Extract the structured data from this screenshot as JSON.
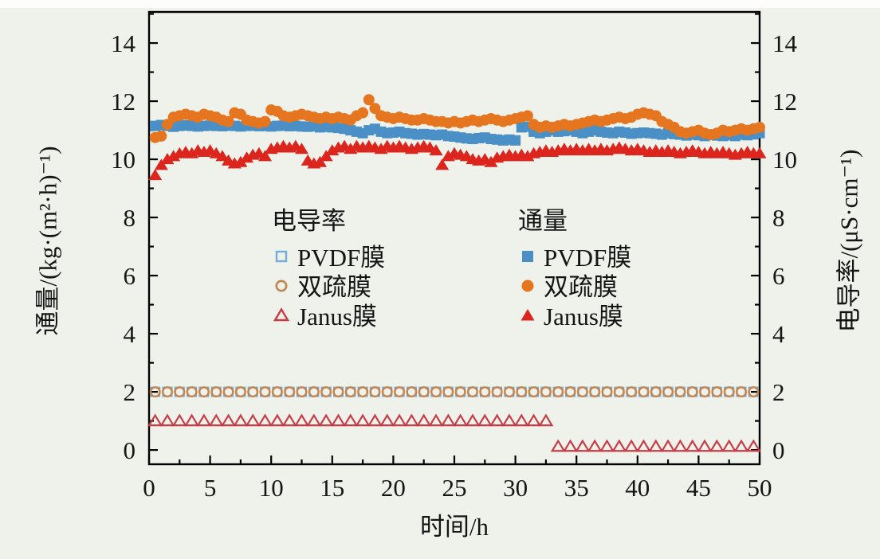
{
  "figure": {
    "background": "#EEF2EB",
    "frame_color": "#000000",
    "text_color": "#151515"
  },
  "legend": {
    "groups": [
      {
        "title": "电导率",
        "items": [
          {
            "label": "PVDF膜",
            "marker": "square-open",
            "color": "#74ADD8"
          },
          {
            "label": "双疏膜",
            "marker": "circle-open",
            "color": "#C5834E"
          },
          {
            "label": "Janus膜",
            "marker": "triangle-open",
            "color": "#C93B45"
          }
        ]
      },
      {
        "title": "通量",
        "items": [
          {
            "label": "PVDF膜",
            "marker": "square",
            "color": "#4A90C6"
          },
          {
            "label": "双疏膜",
            "marker": "circle",
            "color": "#E5761F"
          },
          {
            "label": "Janus膜",
            "marker": "triangle",
            "color": "#DC251C"
          }
        ]
      }
    ]
  },
  "chart_data": {
    "type": "scatter",
    "title": "",
    "xlabel": "时间/h",
    "ylabel_left": "通量/(kg·(m²·h)⁻¹)",
    "ylabel_right": "电导率/(μS·cm⁻¹)",
    "xlim": [
      0,
      50
    ],
    "ylim": [
      -0.49,
      15.07
    ],
    "x_major_ticks": [
      0,
      5,
      10,
      15,
      20,
      25,
      30,
      35,
      40,
      45,
      50
    ],
    "x_minor_ticks": [
      2.5,
      7.5,
      12.5,
      17.5,
      22.5,
      27.5,
      32.5,
      37.5,
      42.5,
      47.5
    ],
    "y_major_ticks": [
      0,
      2,
      4,
      6,
      8,
      10,
      12,
      14
    ],
    "y_minor_ticks": [
      1,
      3,
      5,
      7,
      9,
      11,
      13,
      15
    ],
    "grid": false,
    "legend_position": "inside-center",
    "series": [
      {
        "name": "电导率 PVDF膜",
        "axis": "right",
        "marker": "square-open",
        "color": "#74ADD8",
        "x_start": 0.5,
        "x_step": 1.0,
        "values": [
          2,
          2,
          2,
          2,
          2,
          2,
          2,
          2,
          2,
          2,
          2,
          2,
          2,
          2,
          2,
          2,
          2,
          2,
          2,
          2,
          2,
          2,
          2,
          2,
          2,
          2,
          2,
          2,
          2,
          2,
          2,
          2,
          2,
          2,
          2,
          2,
          2,
          2,
          2,
          2,
          2,
          2,
          2,
          2,
          2,
          2,
          2,
          2,
          2,
          2
        ]
      },
      {
        "name": "电导率 双疏膜",
        "axis": "right",
        "marker": "circle-open",
        "color": "#C5834E",
        "x_start": 0.5,
        "x_step": 1.0,
        "values": [
          2,
          2,
          2,
          2,
          2,
          2,
          2,
          2,
          2,
          2,
          2,
          2,
          2,
          2,
          2,
          2,
          2,
          2,
          2,
          2,
          2,
          2,
          2,
          2,
          2,
          2,
          2,
          2,
          2,
          2,
          2,
          2,
          2,
          2,
          2,
          2,
          2,
          2,
          2,
          2,
          2,
          2,
          2,
          2,
          2,
          2,
          2,
          2,
          2,
          2
        ]
      },
      {
        "name": "电导率 Janus膜",
        "axis": "right",
        "marker": "triangle-open",
        "color": "#C93B45",
        "x_start": 0.5,
        "x_step": 1.0,
        "values": [
          1,
          1,
          1,
          1,
          1,
          1,
          1,
          1,
          1,
          1,
          1,
          1,
          1,
          1,
          1,
          1,
          1,
          1,
          1,
          1,
          1,
          1,
          1,
          1,
          1,
          1,
          1,
          1,
          1,
          1,
          1,
          1,
          1,
          0.12,
          0.12,
          0.12,
          0.12,
          0.12,
          0.12,
          0.12,
          0.12,
          0.12,
          0.12,
          0.12,
          0.12,
          0.12,
          0.12,
          0.12,
          0.12,
          0.12
        ]
      },
      {
        "name": "通量 PVDF膜",
        "axis": "left",
        "marker": "square",
        "color": "#4A90C6",
        "x_start": 0.5,
        "x_step": 0.5,
        "values": [
          11.15,
          11.18,
          11.15,
          11.12,
          11.15,
          11.17,
          11.15,
          11.13,
          11.15,
          11.16,
          11.15,
          11.14,
          11.16,
          11.15,
          11.13,
          11.15,
          11.16,
          11.14,
          11.15,
          11.13,
          11.15,
          11.16,
          11.14,
          11.15,
          11.13,
          11.12,
          11.14,
          11.1,
          11.12,
          11.1,
          11.08,
          11.05,
          11.0,
          10.95,
          10.9,
          11.0,
          11.05,
          10.95,
          10.9,
          10.92,
          10.95,
          10.9,
          10.88,
          10.85,
          10.87,
          10.85,
          10.83,
          10.85,
          10.8,
          10.78,
          10.75,
          10.72,
          10.7,
          10.73,
          10.75,
          10.7,
          10.68,
          10.65,
          10.68,
          10.65,
          11.1,
          11.12,
          10.95,
          10.9,
          10.95,
          11.0,
          10.95,
          10.97,
          11.0,
          10.95,
          10.9,
          10.95,
          11.0,
          10.95,
          10.92,
          10.9,
          10.95,
          10.92,
          10.88,
          10.9,
          10.92,
          10.9,
          10.88,
          10.85,
          10.9,
          10.87,
          10.85,
          10.82,
          10.85,
          10.83,
          10.8,
          10.85,
          10.82,
          10.8,
          10.83,
          10.8,
          10.85,
          10.83,
          10.86,
          10.9
        ]
      },
      {
        "name": "通量 双疏膜",
        "axis": "left",
        "marker": "circle",
        "color": "#E5761F",
        "x_start": 0.5,
        "x_step": 0.5,
        "values": [
          10.75,
          10.8,
          11.2,
          11.45,
          11.5,
          11.55,
          11.5,
          11.45,
          11.55,
          11.5,
          11.45,
          11.35,
          11.3,
          11.6,
          11.55,
          11.35,
          11.3,
          11.25,
          11.3,
          11.7,
          11.65,
          11.5,
          11.45,
          11.5,
          11.55,
          11.5,
          11.45,
          11.4,
          11.45,
          11.4,
          11.45,
          11.4,
          11.35,
          11.5,
          11.6,
          12.05,
          11.75,
          11.5,
          11.45,
          11.4,
          11.45,
          11.4,
          11.35,
          11.35,
          11.4,
          11.35,
          11.3,
          11.3,
          11.25,
          11.3,
          11.25,
          11.3,
          11.35,
          11.3,
          11.35,
          11.4,
          11.35,
          11.3,
          11.35,
          11.4,
          11.45,
          11.5,
          11.2,
          11.1,
          11.15,
          11.1,
          11.15,
          11.2,
          11.15,
          11.2,
          11.25,
          11.3,
          11.35,
          11.3,
          11.35,
          11.4,
          11.45,
          11.4,
          11.45,
          11.55,
          11.6,
          11.55,
          11.5,
          11.3,
          11.2,
          11.1,
          10.95,
          10.9,
          10.95,
          11.0,
          10.9,
          10.85,
          10.9,
          11.0,
          10.95,
          11.0,
          11.05,
          11.0,
          11.05,
          11.1
        ]
      },
      {
        "name": "通量 Janus膜",
        "axis": "left",
        "marker": "triangle",
        "color": "#DC251C",
        "x_start": 0.5,
        "x_step": 0.5,
        "values": [
          9.45,
          9.8,
          10.0,
          10.1,
          10.2,
          10.25,
          10.2,
          10.3,
          10.25,
          10.3,
          10.2,
          10.1,
          9.95,
          9.85,
          9.9,
          10.05,
          10.15,
          10.2,
          10.1,
          10.35,
          10.4,
          10.45,
          10.4,
          10.45,
          10.35,
          9.95,
          9.85,
          9.9,
          10.1,
          10.3,
          10.4,
          10.45,
          10.35,
          10.45,
          10.4,
          10.45,
          10.4,
          10.35,
          10.45,
          10.4,
          10.45,
          10.4,
          10.35,
          10.4,
          10.45,
          10.4,
          10.3,
          9.8,
          10.1,
          10.2,
          10.15,
          10.1,
          10.0,
          9.95,
          10.0,
          9.9,
          10.05,
          10.1,
          10.15,
          10.1,
          10.15,
          10.1,
          10.2,
          10.25,
          10.3,
          10.25,
          10.3,
          10.35,
          10.3,
          10.35,
          10.3,
          10.35,
          10.3,
          10.35,
          10.3,
          10.35,
          10.4,
          10.35,
          10.3,
          10.35,
          10.3,
          10.25,
          10.3,
          10.25,
          10.3,
          10.25,
          10.2,
          10.25,
          10.3,
          10.25,
          10.2,
          10.25,
          10.2,
          10.25,
          10.2,
          10.15,
          10.2,
          10.25,
          10.2,
          10.2
        ]
      }
    ]
  }
}
